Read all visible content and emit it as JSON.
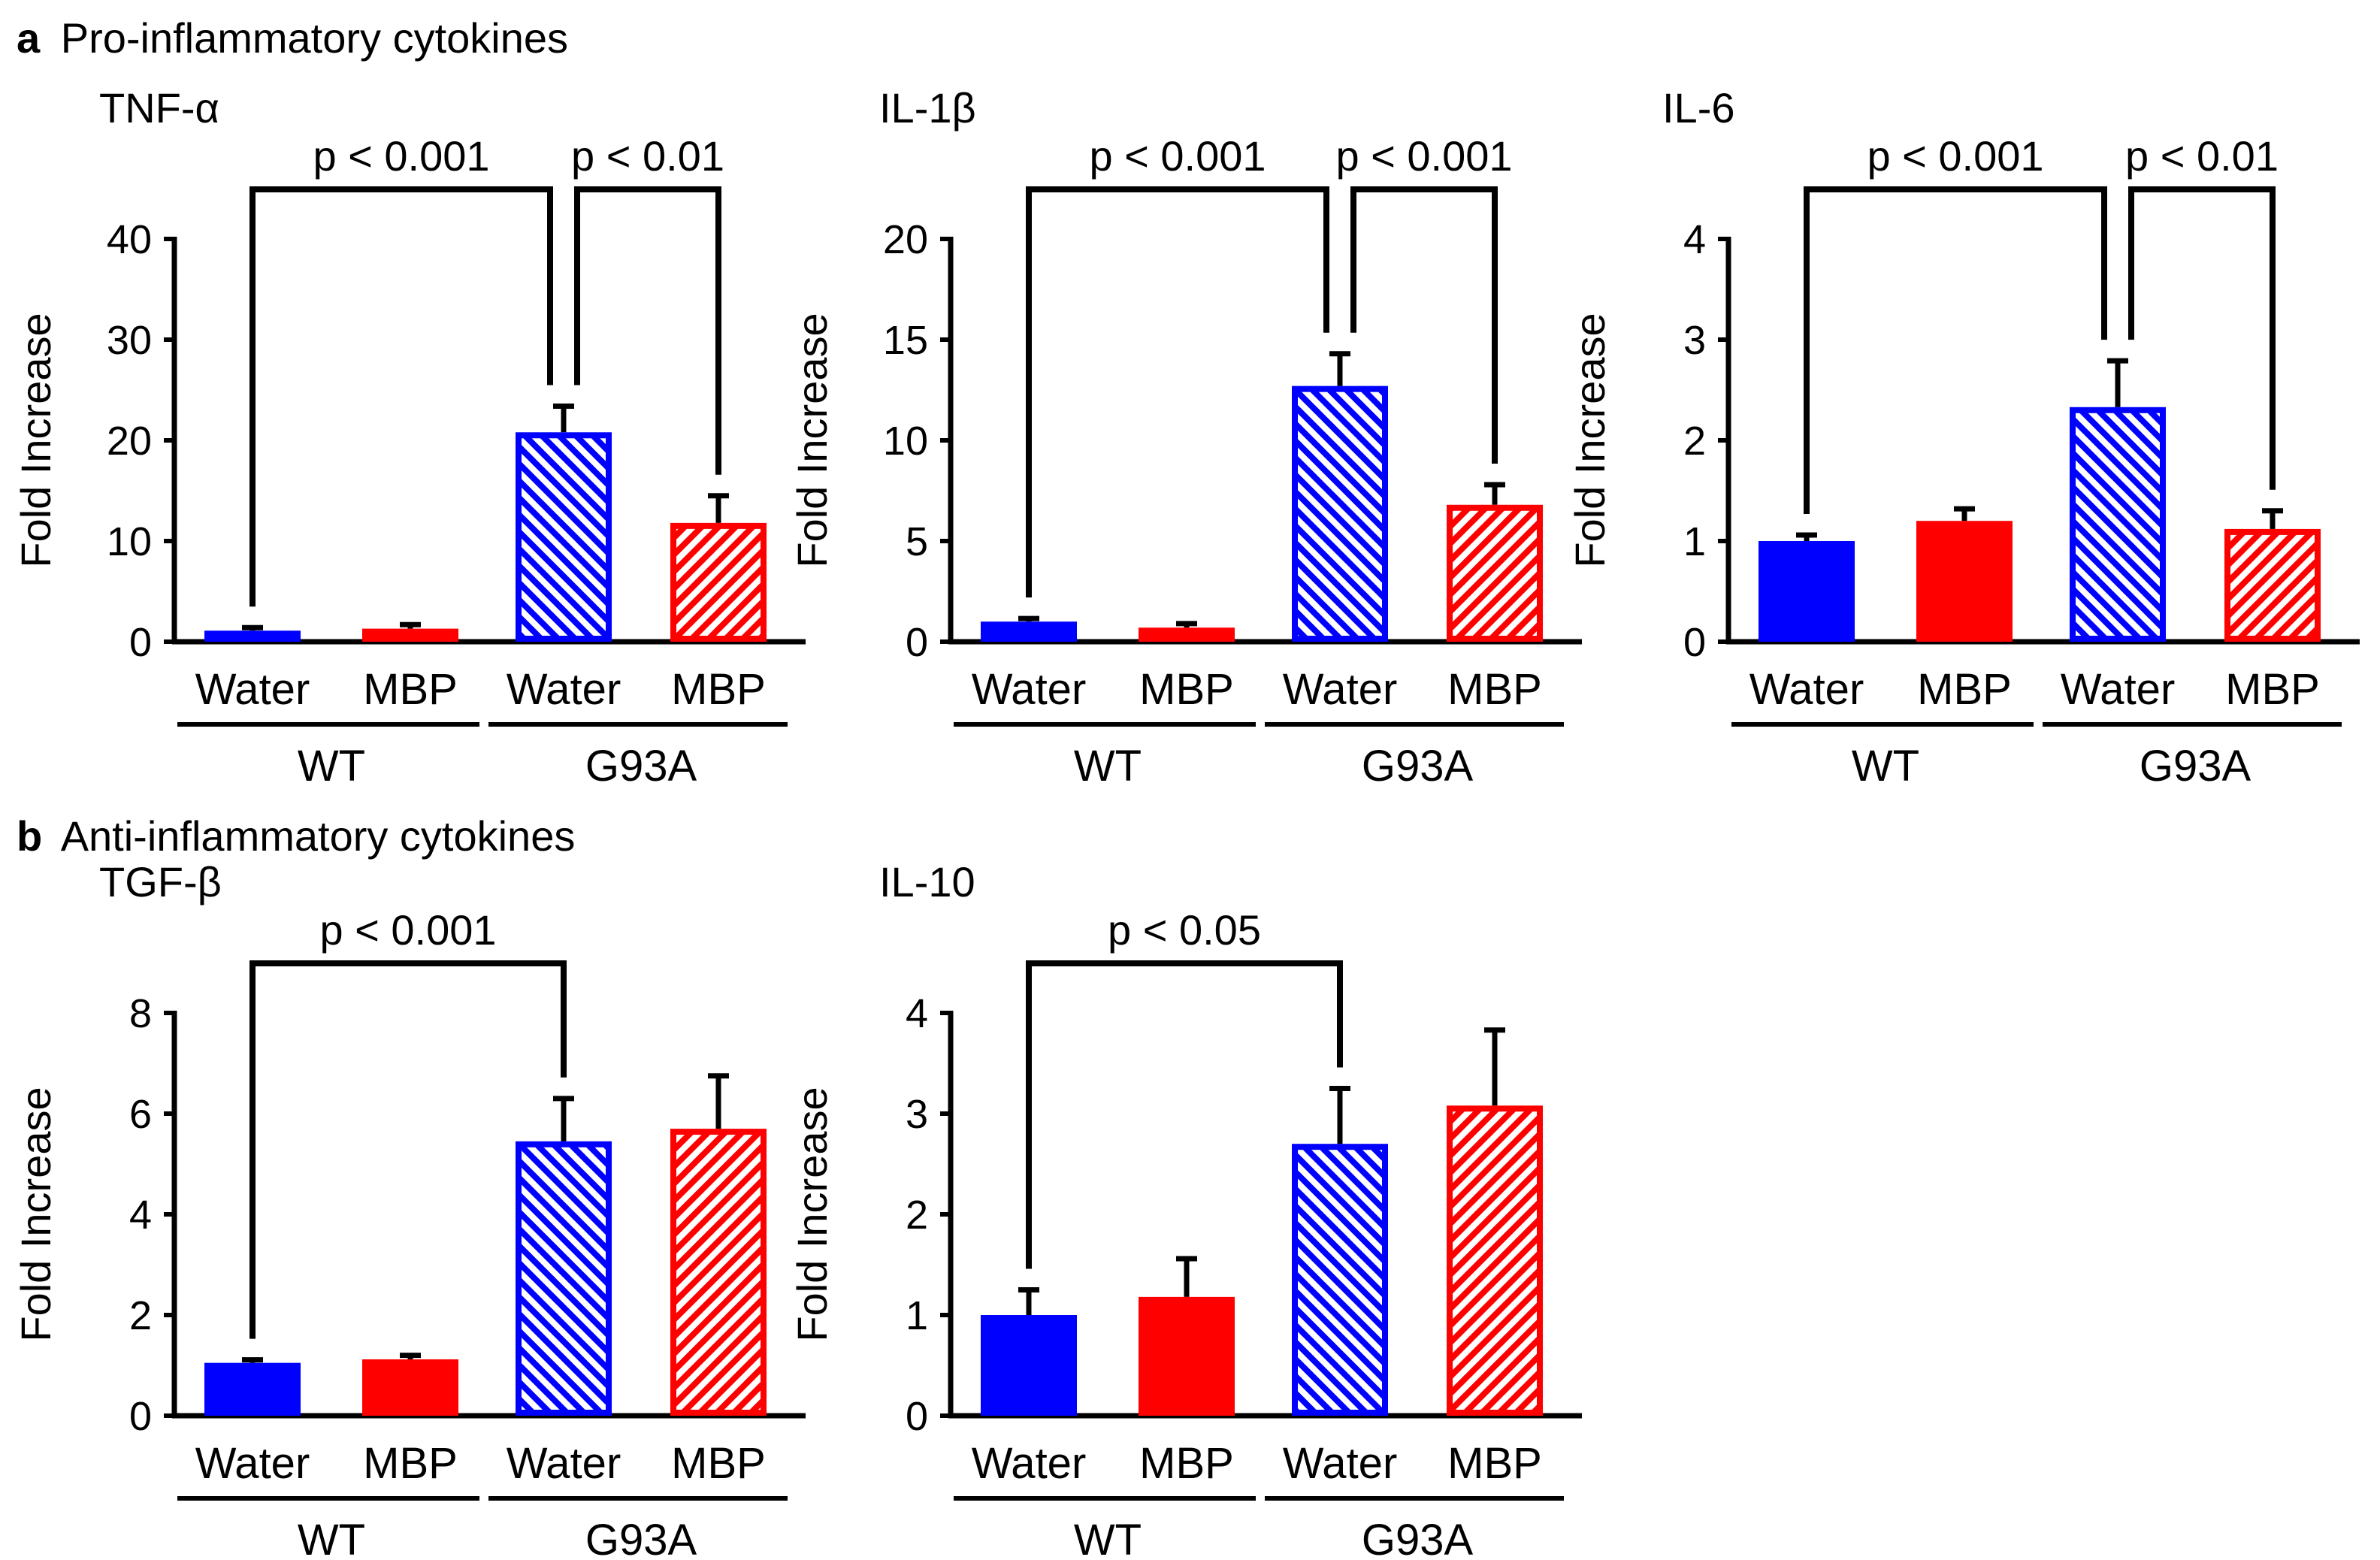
{
  "section_a": {
    "letter": "a",
    "title": "Pro-inflammatory cytokines"
  },
  "section_b": {
    "letter": "b",
    "title": "Anti-inflammatory cytokines"
  },
  "colors": {
    "water": "#0000ff",
    "mbp": "#ff0000",
    "axis": "#000000"
  },
  "chart_data": [
    {
      "type": "bar",
      "title": "TNF-α",
      "ylabel": "Fold Increase",
      "ylim": [
        0,
        40
      ],
      "yticks": [
        0,
        10,
        20,
        30,
        40
      ],
      "categories": [
        "Water",
        "MBP",
        "Water",
        "MBP"
      ],
      "groups": [
        {
          "name": "WT",
          "categories": [
            0,
            1
          ]
        },
        {
          "name": "G93A",
          "categories": [
            2,
            3
          ]
        }
      ],
      "series": [
        {
          "name": "Fold Increase",
          "values": [
            1.1,
            1.3,
            20.8,
            11.8
          ],
          "errors": [
            0.3,
            0.4,
            2.6,
            2.7
          ]
        }
      ],
      "patterns": [
        "solid",
        "solid",
        "hatched",
        "hatched"
      ],
      "annotations": [
        {
          "text": "p < 0.001",
          "from": 0,
          "to": 2
        },
        {
          "text": "p < 0.01",
          "from": 2,
          "to": 3
        }
      ]
    },
    {
      "type": "bar",
      "title": "IL-1β",
      "ylabel": "Fold Increase",
      "ylim": [
        0,
        20
      ],
      "yticks": [
        0,
        5,
        10,
        15,
        20
      ],
      "categories": [
        "Water",
        "MBP",
        "Water",
        "MBP"
      ],
      "groups": [
        {
          "name": "WT",
          "categories": [
            0,
            1
          ]
        },
        {
          "name": "G93A",
          "categories": [
            2,
            3
          ]
        }
      ],
      "series": [
        {
          "name": "Fold Increase",
          "values": [
            1.0,
            0.7,
            12.7,
            6.8
          ],
          "errors": [
            0.15,
            0.2,
            1.6,
            1.0
          ]
        }
      ],
      "patterns": [
        "solid",
        "solid",
        "hatched",
        "hatched"
      ],
      "annotations": [
        {
          "text": "p < 0.001",
          "from": 0,
          "to": 2
        },
        {
          "text": "p < 0.001",
          "from": 2,
          "to": 3
        }
      ]
    },
    {
      "type": "bar",
      "title": "IL-6",
      "ylabel": "Fold Increase",
      "ylim": [
        0,
        4
      ],
      "yticks": [
        0,
        1,
        2,
        3,
        4
      ],
      "categories": [
        "Water",
        "MBP",
        "Water",
        "MBP"
      ],
      "groups": [
        {
          "name": "WT",
          "categories": [
            0,
            1
          ]
        },
        {
          "name": "G93A",
          "categories": [
            2,
            3
          ]
        }
      ],
      "series": [
        {
          "name": "Fold Increase",
          "values": [
            1.0,
            1.2,
            2.33,
            1.12
          ],
          "errors": [
            0.06,
            0.12,
            0.46,
            0.18
          ]
        }
      ],
      "patterns": [
        "solid",
        "solid",
        "hatched",
        "hatched"
      ],
      "annotations": [
        {
          "text": "p < 0.001",
          "from": 0,
          "to": 2
        },
        {
          "text": "p < 0.01",
          "from": 2,
          "to": 3
        }
      ]
    },
    {
      "type": "bar",
      "title": "TGF-β",
      "ylabel": "Fold Increase",
      "ylim": [
        0,
        8
      ],
      "yticks": [
        0,
        2,
        4,
        6,
        8
      ],
      "categories": [
        "Water",
        "MBP",
        "Water",
        "MBP"
      ],
      "groups": [
        {
          "name": "WT",
          "categories": [
            0,
            1
          ]
        },
        {
          "name": "G93A",
          "categories": [
            2,
            3
          ]
        }
      ],
      "series": [
        {
          "name": "Fold Increase",
          "values": [
            1.05,
            1.12,
            5.45,
            5.7
          ],
          "errors": [
            0.06,
            0.08,
            0.85,
            1.05
          ]
        }
      ],
      "patterns": [
        "solid",
        "solid",
        "hatched",
        "hatched"
      ],
      "annotations": [
        {
          "text": "p < 0.001",
          "from": 0,
          "to": 2
        }
      ]
    },
    {
      "type": "bar",
      "title": "IL-10",
      "ylabel": "Fold Increase",
      "ylim": [
        0,
        4
      ],
      "yticks": [
        0,
        1,
        2,
        3,
        4
      ],
      "categories": [
        "Water",
        "MBP",
        "Water",
        "MBP"
      ],
      "groups": [
        {
          "name": "WT",
          "categories": [
            0,
            1
          ]
        },
        {
          "name": "G93A",
          "categories": [
            2,
            3
          ]
        }
      ],
      "series": [
        {
          "name": "Fold Increase",
          "values": [
            1.0,
            1.18,
            2.7,
            3.08
          ],
          "errors": [
            0.25,
            0.38,
            0.55,
            0.75
          ]
        }
      ],
      "patterns": [
        "solid",
        "solid",
        "hatched",
        "hatched"
      ],
      "annotations": [
        {
          "text": "p < 0.05",
          "from": 0,
          "to": 2
        }
      ]
    }
  ]
}
